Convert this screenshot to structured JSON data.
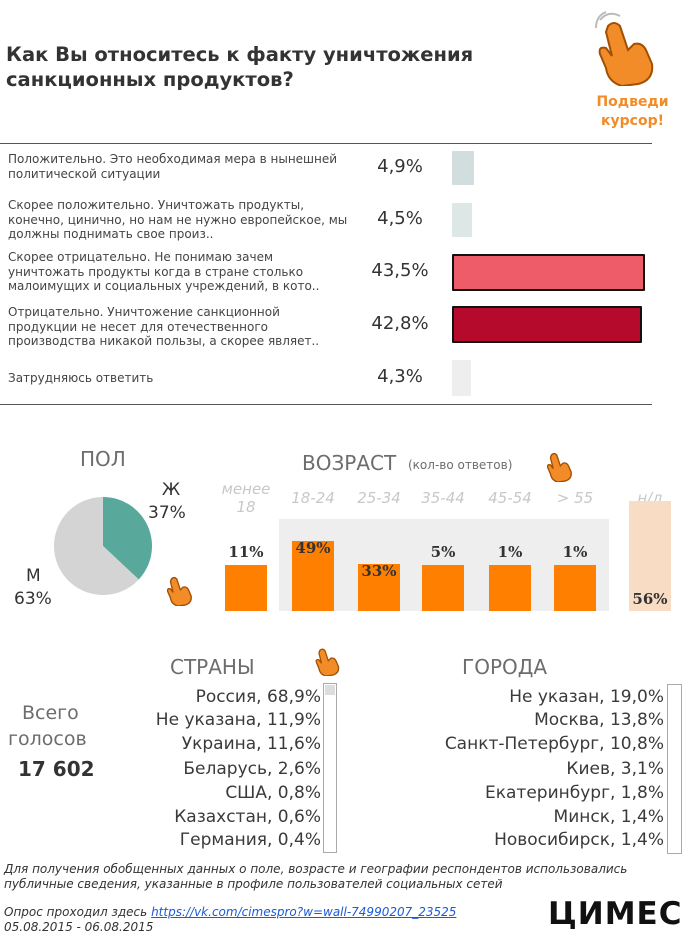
{
  "title": "Как Вы относитесь к факту уничтожения санкционных продуктов?",
  "hint": {
    "text": "Подведи курсор!"
  },
  "chart_data": [
    {
      "type": "bar",
      "title": "Как Вы относитесь к факту уничтожения санкционных продуктов?",
      "categories": [
        "Положительно. Это необходимая мера в нынешней политической ситуации",
        "Скорее положительно. Уничтожать продукты, конечно, цинично, но нам не нужно европейское, мы должны поднимать свое произ..",
        "Скорее отрицательно. Не понимаю зачем уничтожать продукты когда в стране столько малоимущих и социальных учреждений, в кото..",
        "Отрицательно. Уничтожение санкционной продукции не несет для отечественного производства никакой пользы, а скорее являет..",
        "Затрудняюсь ответить"
      ],
      "values": [
        4.9,
        4.5,
        43.5,
        42.8,
        4.3
      ],
      "labels": [
        "4,9%",
        "4,5%",
        "43,5%",
        "42,8%",
        "4,3%"
      ],
      "colors": [
        "#d2dedd",
        "#dde8e6",
        "#ee5b69",
        "#b50a2b",
        "#eeeeee"
      ]
    },
    {
      "type": "pie",
      "title": "ПОЛ",
      "categories": [
        "Ж",
        "М"
      ],
      "values": [
        37,
        63
      ],
      "labels": [
        "37%",
        "63%"
      ],
      "colors": [
        "#58a99b",
        "#d4d4d4"
      ]
    },
    {
      "type": "bar",
      "title": "ВОЗРАСТ",
      "subtitle": "(кол-во ответов)",
      "categories": [
        "менее 18",
        "18-24",
        "25-34",
        "35-44",
        "45-54",
        "> 55",
        "н/д"
      ],
      "values": [
        11,
        49,
        33,
        5,
        1,
        1,
        56
      ],
      "labels": [
        "11%",
        "49%",
        "33%",
        "5%",
        "1%",
        "1%",
        "56%"
      ]
    }
  ],
  "age_scale_max": 100,
  "countries": {
    "title": "СТРАНЫ",
    "items": [
      "Россия, 68,9%",
      "Не указана, 11,9%",
      "Украина, 11,6%",
      "Беларусь, 2,6%",
      "США, 0,8%",
      "Казахстан, 0,6%",
      "Германия, 0,4%"
    ]
  },
  "cities": {
    "title": "ГОРОДА",
    "items": [
      "Не указан, 19,0%",
      "Москва, 13,8%",
      "Санкт-Петербург, 10,8%",
      "Киев, 3,1%",
      "Екатеринбург, 1,8%",
      "Минск, 1,4%",
      "Новосибирск, 1,4%"
    ]
  },
  "total": {
    "label": "Всего голосов",
    "line1": "Всего",
    "line2": "голосов",
    "value": "17 602"
  },
  "footer": {
    "note": "Для получения обобщенных данных о поле, возрасте и географии респондентов использовались публичные сведения, указанные в профиле пользователей социальных сетей",
    "poll_prefix": "Опрос проходил здесь",
    "poll_link": "https://vk.com/cimespro?w=wall-74990207_23525",
    "dates": "05.08.2015 - 06.08.2015"
  },
  "logo": {
    "text": "ЦИМЕС"
  }
}
